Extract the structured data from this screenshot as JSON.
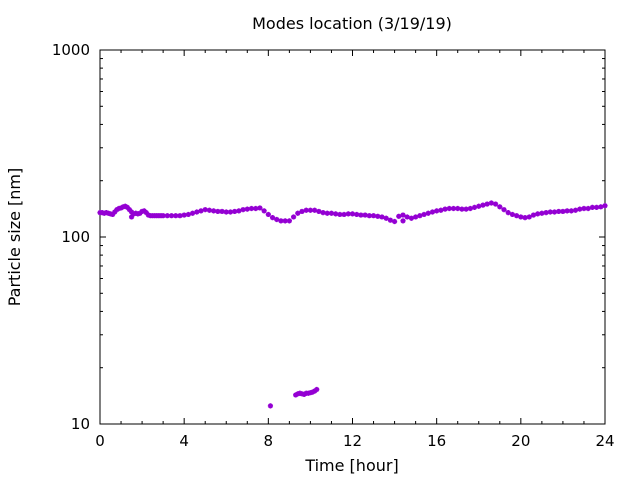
{
  "chart_data": {
    "type": "scatter",
    "title": "Modes location (3/19/19)",
    "xlabel": "Time [hour]",
    "ylabel": "Particle size [nm]",
    "xlim": [
      0,
      24
    ],
    "ylim": [
      10,
      1000
    ],
    "yscale": "log",
    "grid": false,
    "legend": "none",
    "x_ticks": [
      0,
      4,
      8,
      12,
      16,
      20,
      24
    ],
    "y_ticks": [
      10,
      100,
      1000
    ],
    "marker_color": "#9400d3",
    "series": [
      {
        "points": [
          [
            0.0,
            135
          ],
          [
            0.1,
            135
          ],
          [
            0.2,
            134
          ],
          [
            0.3,
            135
          ],
          [
            0.4,
            134
          ],
          [
            0.5,
            133
          ],
          [
            0.6,
            132
          ],
          [
            0.7,
            136
          ],
          [
            0.8,
            140
          ],
          [
            0.9,
            142
          ],
          [
            1.0,
            143
          ],
          [
            1.1,
            145
          ],
          [
            1.2,
            146
          ],
          [
            1.3,
            144
          ],
          [
            1.4,
            140
          ],
          [
            1.5,
            136
          ],
          [
            1.6,
            133
          ],
          [
            1.7,
            134
          ],
          [
            1.8,
            133
          ],
          [
            1.9,
            134
          ],
          [
            2.0,
            137
          ],
          [
            2.1,
            138
          ],
          [
            2.2,
            135
          ],
          [
            2.3,
            131
          ],
          [
            2.4,
            130
          ],
          [
            2.5,
            130
          ],
          [
            2.6,
            130
          ],
          [
            2.7,
            130
          ],
          [
            2.8,
            130
          ],
          [
            2.9,
            130
          ],
          [
            3.0,
            130
          ],
          [
            3.2,
            130
          ],
          [
            3.4,
            130
          ],
          [
            3.6,
            130
          ],
          [
            3.8,
            130
          ],
          [
            4.0,
            131
          ],
          [
            4.2,
            132
          ],
          [
            4.4,
            134
          ],
          [
            4.6,
            136
          ],
          [
            4.8,
            138
          ],
          [
            5.0,
            140
          ],
          [
            5.2,
            139
          ],
          [
            5.4,
            138
          ],
          [
            5.6,
            137
          ],
          [
            5.8,
            137
          ],
          [
            6.0,
            136
          ],
          [
            6.2,
            136
          ],
          [
            6.4,
            137
          ],
          [
            6.6,
            138
          ],
          [
            6.8,
            140
          ],
          [
            7.0,
            141
          ],
          [
            7.2,
            142
          ],
          [
            7.4,
            142
          ],
          [
            7.6,
            143
          ],
          [
            7.8,
            138
          ],
          [
            8.0,
            132
          ],
          [
            8.2,
            127
          ],
          [
            8.4,
            124
          ],
          [
            8.6,
            122
          ],
          [
            8.8,
            122
          ],
          [
            9.0,
            122
          ],
          [
            9.2,
            128
          ],
          [
            9.4,
            134
          ],
          [
            9.6,
            137
          ],
          [
            9.8,
            139
          ],
          [
            10.0,
            139
          ],
          [
            10.2,
            139
          ],
          [
            10.4,
            137
          ],
          [
            10.6,
            135
          ],
          [
            10.8,
            134
          ],
          [
            11.0,
            134
          ],
          [
            11.2,
            133
          ],
          [
            11.4,
            132
          ],
          [
            11.6,
            132
          ],
          [
            11.8,
            133
          ],
          [
            12.0,
            133
          ],
          [
            12.2,
            132
          ],
          [
            12.4,
            131
          ],
          [
            12.6,
            131
          ],
          [
            12.8,
            130
          ],
          [
            13.0,
            130
          ],
          [
            13.2,
            129
          ],
          [
            13.4,
            128
          ],
          [
            13.6,
            126
          ],
          [
            13.8,
            123
          ],
          [
            14.0,
            121
          ],
          [
            14.2,
            129
          ],
          [
            14.4,
            131
          ],
          [
            14.6,
            128
          ],
          [
            14.8,
            126
          ],
          [
            15.0,
            128
          ],
          [
            15.2,
            130
          ],
          [
            15.4,
            132
          ],
          [
            15.6,
            134
          ],
          [
            15.8,
            136
          ],
          [
            16.0,
            138
          ],
          [
            16.2,
            139
          ],
          [
            16.4,
            141
          ],
          [
            16.6,
            142
          ],
          [
            16.8,
            142
          ],
          [
            17.0,
            142
          ],
          [
            17.2,
            141
          ],
          [
            17.4,
            141
          ],
          [
            17.6,
            142
          ],
          [
            17.8,
            144
          ],
          [
            18.0,
            146
          ],
          [
            18.2,
            148
          ],
          [
            18.4,
            150
          ],
          [
            18.6,
            152
          ],
          [
            18.8,
            150
          ],
          [
            19.0,
            145
          ],
          [
            19.2,
            140
          ],
          [
            19.4,
            135
          ],
          [
            19.6,
            132
          ],
          [
            19.8,
            130
          ],
          [
            20.0,
            128
          ],
          [
            20.2,
            127
          ],
          [
            20.4,
            128
          ],
          [
            20.6,
            131
          ],
          [
            20.8,
            133
          ],
          [
            21.0,
            134
          ],
          [
            21.2,
            135
          ],
          [
            21.4,
            136
          ],
          [
            21.6,
            136
          ],
          [
            21.8,
            137
          ],
          [
            22.0,
            137
          ],
          [
            22.2,
            138
          ],
          [
            22.4,
            138
          ],
          [
            22.6,
            139
          ],
          [
            22.8,
            141
          ],
          [
            23.0,
            142
          ],
          [
            23.2,
            142
          ],
          [
            23.4,
            144
          ],
          [
            23.6,
            144
          ],
          [
            23.8,
            145
          ],
          [
            24.0,
            147
          ],
          [
            1.5,
            128
          ],
          [
            14.4,
            122
          ],
          [
            8.1,
            12.5
          ],
          [
            9.3,
            14.3
          ],
          [
            9.4,
            14.5
          ],
          [
            9.5,
            14.6
          ],
          [
            9.6,
            14.5
          ],
          [
            9.7,
            14.4
          ],
          [
            9.8,
            14.6
          ],
          [
            9.9,
            14.6
          ],
          [
            10.0,
            14.7
          ],
          [
            10.1,
            14.8
          ],
          [
            10.2,
            15.0
          ],
          [
            10.3,
            15.3
          ]
        ]
      }
    ]
  }
}
